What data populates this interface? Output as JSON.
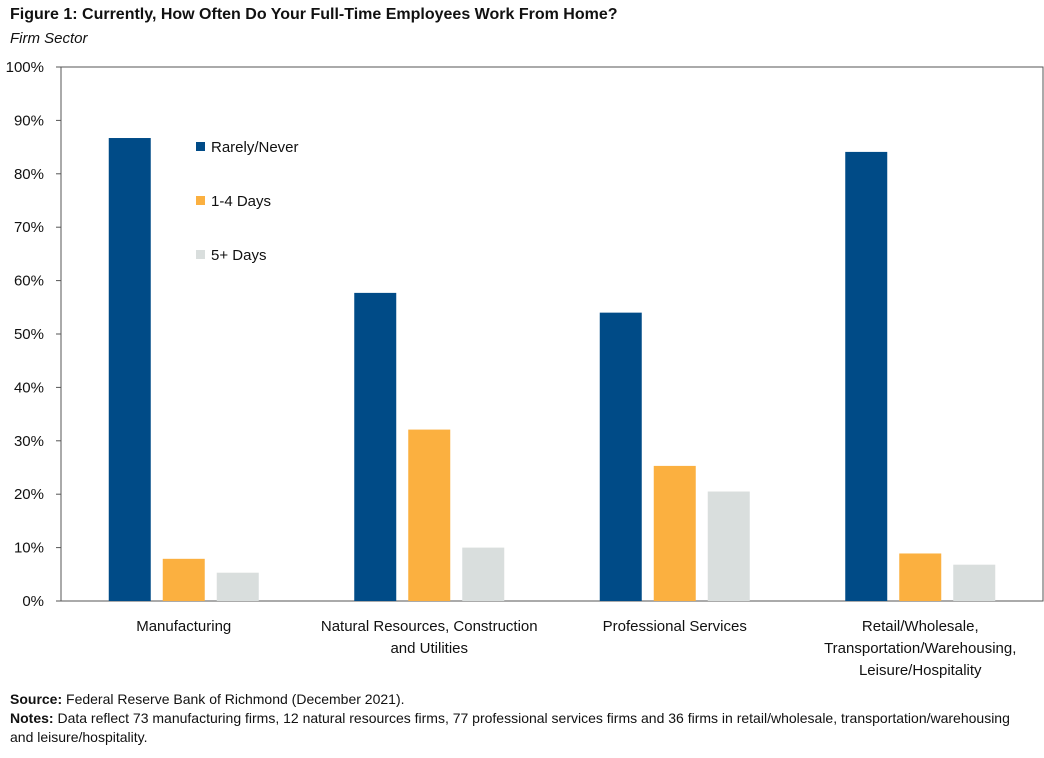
{
  "figure": {
    "title": "Figure 1: Currently, How Often Do Your Full-Time Employees Work From Home?",
    "subtitle": "Firm Sector"
  },
  "chart_data": {
    "type": "bar",
    "categories": [
      [
        "Manufacturing"
      ],
      [
        "Natural Resources, Construction",
        "and Utilities"
      ],
      [
        "Professional Services"
      ],
      [
        "Retail/Wholesale,",
        "Transportation/Warehousing,",
        "Leisure/Hospitality"
      ]
    ],
    "series": [
      {
        "name": "Rarely/Never",
        "color": "#004b87",
        "values": [
          86.7,
          57.7,
          54.0,
          84.1
        ]
      },
      {
        "name": "1-4 Days",
        "color": "#fbb040",
        "values": [
          7.9,
          32.1,
          25.3,
          8.9
        ]
      },
      {
        "name": "5+ Days",
        "color": "#d9dedd",
        "values": [
          5.3,
          10.0,
          20.5,
          6.8
        ]
      }
    ],
    "ylim": [
      0,
      100
    ],
    "yticks": [
      "0%",
      "10%",
      "20%",
      "30%",
      "40%",
      "50%",
      "60%",
      "70%",
      "80%",
      "90%",
      "100%"
    ],
    "grid": false,
    "legend_position": "top-left"
  },
  "footer": {
    "source_label": "Source:",
    "source_text": "Federal Reserve Bank of Richmond (December 2021).",
    "notes_label": "Notes:",
    "notes_text": "Data reflect 73 manufacturing firms, 12 natural resources firms, 77 professional services firms and 36 firms in retail/wholesale, transportation/warehousing and leisure/hospitality."
  }
}
